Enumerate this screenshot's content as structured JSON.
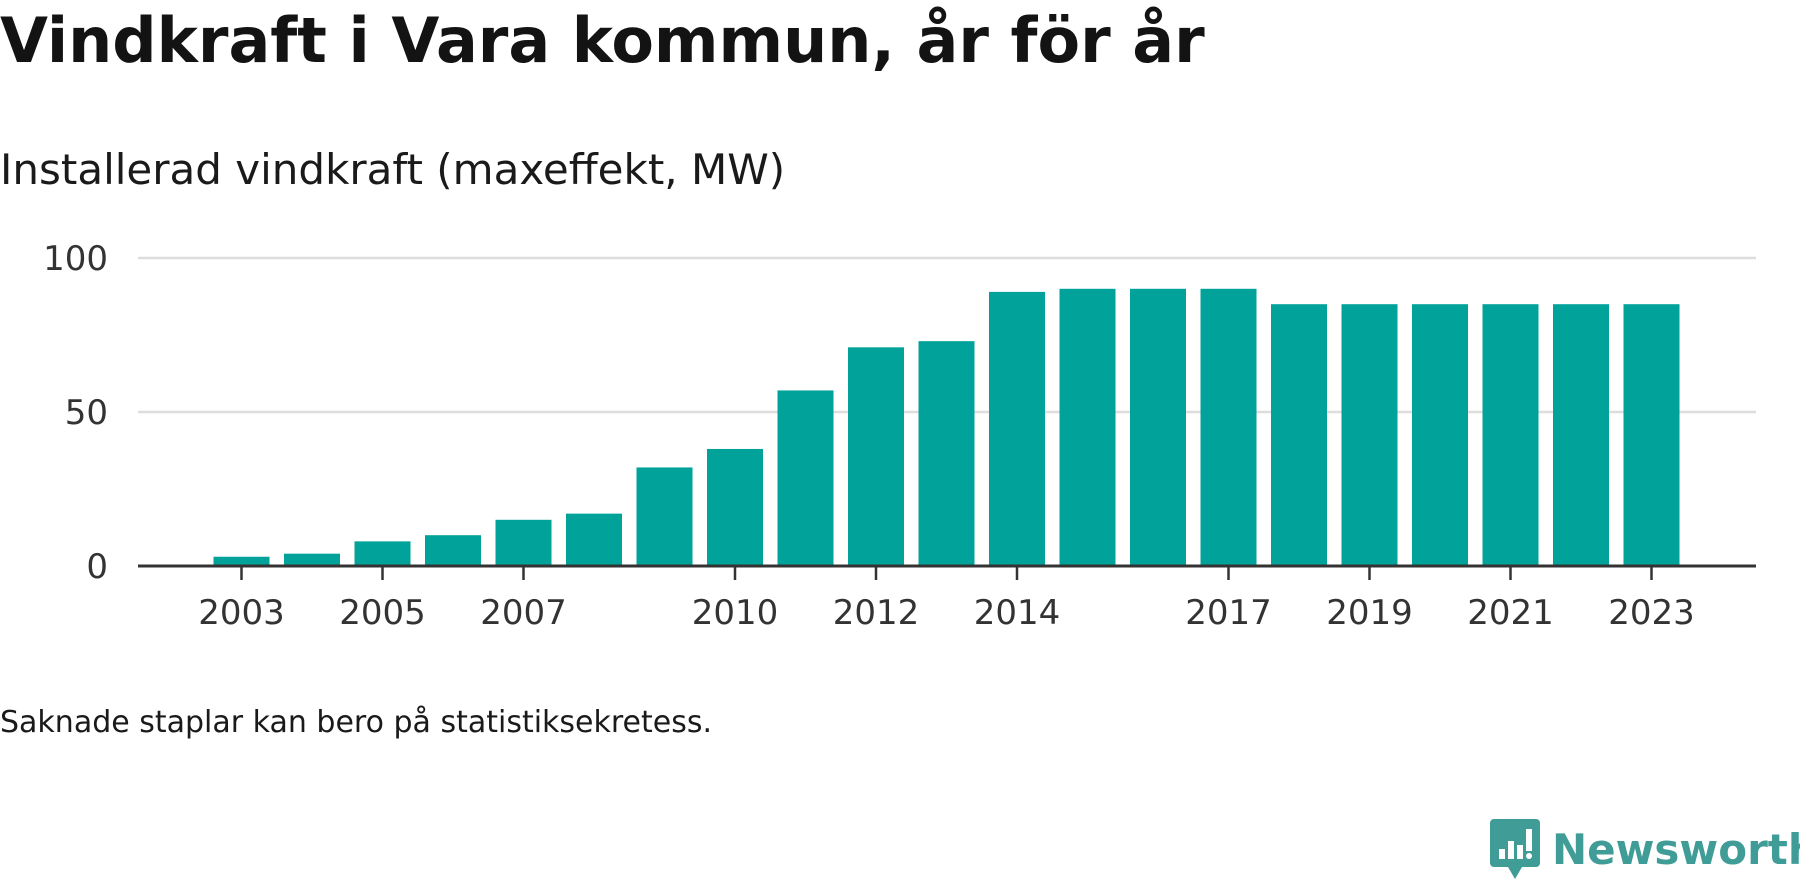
{
  "header": {
    "title": "Vindkraft i Vara kommun, år för år",
    "subtitle": "Installerad vindkraft (maxeffekt, MW)"
  },
  "footer": {
    "note": "Saknade staplar kan bero på statistiksekretess.",
    "brand": "Newsworthy"
  },
  "colors": {
    "bar": "#00a29a",
    "grid": "#dddddd",
    "axis": "#333333",
    "brand": "#3f9c97"
  },
  "chart_data": {
    "type": "bar",
    "title": "Vindkraft i Vara kommun, år för år",
    "subtitle": "Installerad vindkraft (maxeffekt, MW)",
    "xlabel": "",
    "ylabel": "",
    "ylim": [
      0,
      100
    ],
    "yticks": [
      0,
      50,
      100
    ],
    "grid": true,
    "legend": "none",
    "categories": [
      "2003",
      "2004",
      "2005",
      "2006",
      "2007",
      "2008",
      "2009",
      "2010",
      "2011",
      "2012",
      "2013",
      "2014",
      "2015",
      "2016",
      "2017",
      "2018",
      "2019",
      "2020",
      "2021",
      "2022",
      "2023"
    ],
    "xtick_labels": [
      "2003",
      "2005",
      "2007",
      "2010",
      "2012",
      "2014",
      "2017",
      "2019",
      "2021",
      "2023"
    ],
    "values": [
      3,
      4,
      8,
      10,
      15,
      17,
      32,
      38,
      57,
      71,
      73,
      89,
      90,
      90,
      90,
      85,
      85,
      85,
      85,
      85,
      85
    ]
  }
}
